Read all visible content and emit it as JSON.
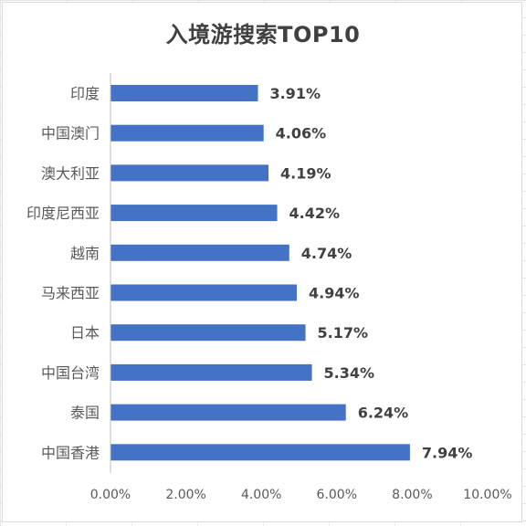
{
  "chart_data": {
    "type": "bar",
    "orientation": "horizontal",
    "title": "入境游搜索TOP10",
    "xlabel": "",
    "ylabel": "",
    "categories": [
      "印度",
      "中国澳门",
      "澳大利亚",
      "印度尼西亚",
      "越南",
      "马来西亚",
      "日本",
      "中国台湾",
      "泰国",
      "中国香港"
    ],
    "values": [
      3.91,
      4.06,
      4.19,
      4.42,
      4.74,
      4.94,
      5.17,
      5.34,
      6.24,
      7.94
    ],
    "value_labels": [
      "3.91%",
      "4.06%",
      "4.19%",
      "4.42%",
      "4.74%",
      "4.94%",
      "5.17%",
      "5.34%",
      "6.24%",
      "7.94%"
    ],
    "xlim": [
      0,
      10
    ],
    "x_ticks": [
      0,
      2,
      4,
      6,
      8,
      10
    ],
    "x_tick_labels": [
      "0.00%",
      "2.00%",
      "4.00%",
      "6.00%",
      "8.00%",
      "10.00%"
    ],
    "grid": false,
    "legend": "none",
    "bar_color": "#4472C4"
  }
}
